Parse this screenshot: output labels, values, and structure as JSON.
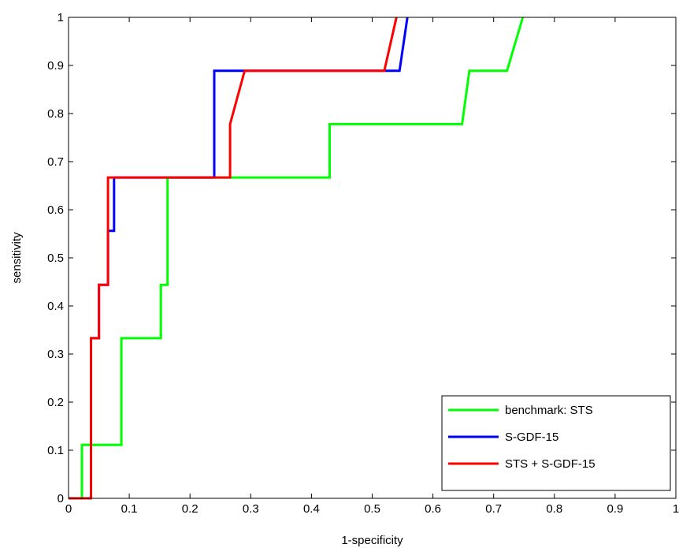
{
  "chart_data": {
    "type": "line",
    "title": "",
    "xlabel": "1-specificity",
    "ylabel": "sensitivity",
    "xlim": [
      0,
      1
    ],
    "ylim": [
      0,
      1
    ],
    "xticks": [
      0,
      0.1,
      0.2,
      0.3,
      0.4,
      0.5,
      0.6,
      0.7,
      0.8,
      0.9,
      1
    ],
    "yticks": [
      0,
      0.1,
      0.2,
      0.3,
      0.4,
      0.5,
      0.6,
      0.7,
      0.8,
      0.9,
      1
    ],
    "xtick_labels": [
      "0",
      "0.1",
      "0.2",
      "0.3",
      "0.4",
      "0.5",
      "0.6",
      "0.7",
      "0.8",
      "0.9",
      "1"
    ],
    "ytick_labels": [
      "0",
      "0.1",
      "0.2",
      "0.3",
      "0.4",
      "0.5",
      "0.6",
      "0.7",
      "0.8",
      "0.9",
      "1"
    ],
    "grid": false,
    "legend_position": "bottom-right",
    "series": [
      {
        "name": "benchmark: STS",
        "color": "#00ff00",
        "x": [
          0,
          0.022,
          0.022,
          0.087,
          0.087,
          0.152,
          0.152,
          0.163,
          0.163,
          0.43,
          0.43,
          0.648,
          0.66,
          0.722,
          0.748
        ],
        "y": [
          0,
          0,
          0.111,
          0.111,
          0.333,
          0.333,
          0.444,
          0.444,
          0.667,
          0.667,
          0.778,
          0.778,
          0.889,
          0.889,
          1.0
        ]
      },
      {
        "name": "S-GDF-15",
        "color": "#0000ff",
        "x": [
          0,
          0.037,
          0.037,
          0.05,
          0.05,
          0.065,
          0.065,
          0.075,
          0.075,
          0.24,
          0.24,
          0.29,
          0.545,
          0.558
        ],
        "y": [
          0,
          0,
          0.333,
          0.333,
          0.444,
          0.444,
          0.556,
          0.556,
          0.667,
          0.667,
          0.889,
          0.889,
          0.889,
          1.0
        ]
      },
      {
        "name": "STS + S-GDF-15",
        "color": "#ff0000",
        "x": [
          0,
          0.037,
          0.037,
          0.05,
          0.05,
          0.06,
          0.06,
          0.065,
          0.065,
          0.266,
          0.266,
          0.29,
          0.52,
          0.54
        ],
        "y": [
          0,
          0,
          0.333,
          0.333,
          0.444,
          0.444,
          0.444,
          0.444,
          0.667,
          0.667,
          0.778,
          0.889,
          0.889,
          1.0
        ]
      }
    ]
  }
}
